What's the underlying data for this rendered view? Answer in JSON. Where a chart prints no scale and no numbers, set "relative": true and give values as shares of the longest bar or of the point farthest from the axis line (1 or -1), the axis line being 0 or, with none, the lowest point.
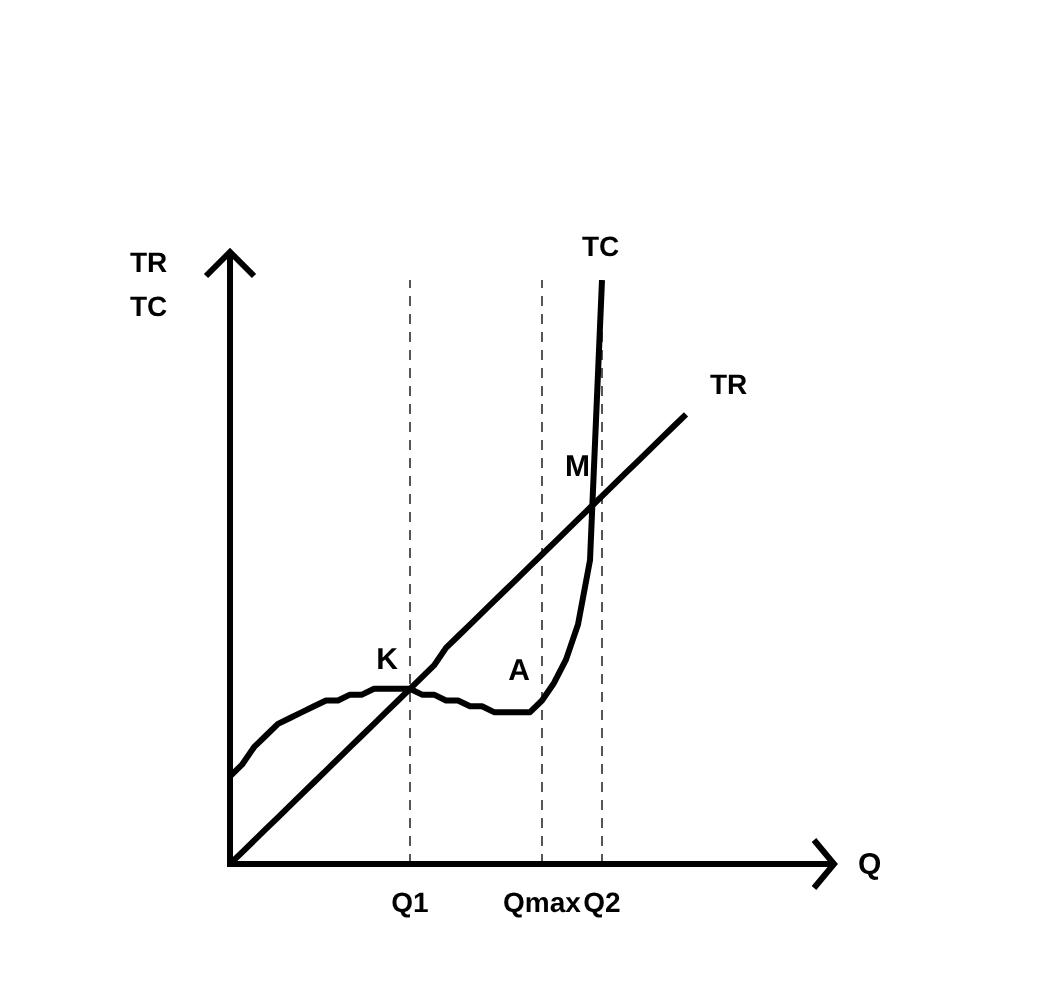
{
  "chart_data": {
    "type": "line",
    "relative": true,
    "xlabel": "Q",
    "ylabel": "TR TC",
    "marker": "none",
    "line_style": "solid",
    "categories": [
      null,
      null,
      null,
      null,
      null,
      null,
      null,
      null,
      null,
      null,
      null,
      null,
      null,
      null,
      null,
      "Q1",
      null,
      null,
      null,
      null,
      null,
      null,
      null,
      null,
      null,
      null,
      "Qmax",
      null,
      null,
      null,
      null,
      "Q2",
      null,
      null,
      null,
      null,
      null,
      null,
      null,
      null,
      null,
      null,
      null,
      null,
      null,
      null,
      null,
      null,
      null,
      null,
      null
    ],
    "series": [
      {
        "name": "TC",
        "color": "#000000",
        "values": [
          0.15,
          0.17,
          0.2,
          0.22,
          0.24,
          0.25,
          0.26,
          0.27,
          0.28,
          0.28,
          0.29,
          0.29,
          0.3,
          0.3,
          0.3,
          0.3,
          0.29,
          0.29,
          0.28,
          0.28,
          0.27,
          0.27,
          0.26,
          0.26,
          0.26,
          0.26,
          0.28,
          0.31,
          0.35,
          0.41,
          0.52,
          1.0,
          null,
          null,
          null,
          null,
          null,
          null,
          null,
          null,
          null,
          null,
          null,
          null,
          null,
          null,
          null,
          null,
          null,
          null,
          null
        ]
      },
      {
        "name": "TR",
        "color": "#000000",
        "values": [
          0,
          0.02,
          0.04,
          0.06,
          0.08,
          0.1,
          0.12,
          0.14,
          0.16,
          0.18,
          0.2,
          0.22,
          0.24,
          0.26,
          0.28,
          0.3,
          0.32,
          0.34,
          0.37,
          0.39,
          0.41,
          0.43,
          0.45,
          0.47,
          0.49,
          0.51,
          0.53,
          0.55,
          0.57,
          0.59,
          0.61,
          0.63,
          0.65,
          0.67,
          0.69,
          0.71,
          0.73,
          0.75,
          0.77,
          null,
          null,
          null,
          null,
          null,
          null,
          null,
          null,
          null,
          null,
          null,
          null
        ]
      }
    ],
    "ref_lines": [
      {
        "axis": "x",
        "value": "Q1",
        "line_style": "dashed"
      },
      {
        "axis": "x",
        "value": "Qmax",
        "line_style": "dashed"
      },
      {
        "axis": "x",
        "value": "Q2",
        "line_style": "dashed"
      }
    ],
    "annotations": [
      {
        "text": "K",
        "x": "Q1",
        "y": 0.3
      },
      {
        "text": "A",
        "x": "Qmax",
        "y": 0.28
      },
      {
        "text": "M",
        "x": "Q2",
        "y": 0.63
      }
    ]
  }
}
